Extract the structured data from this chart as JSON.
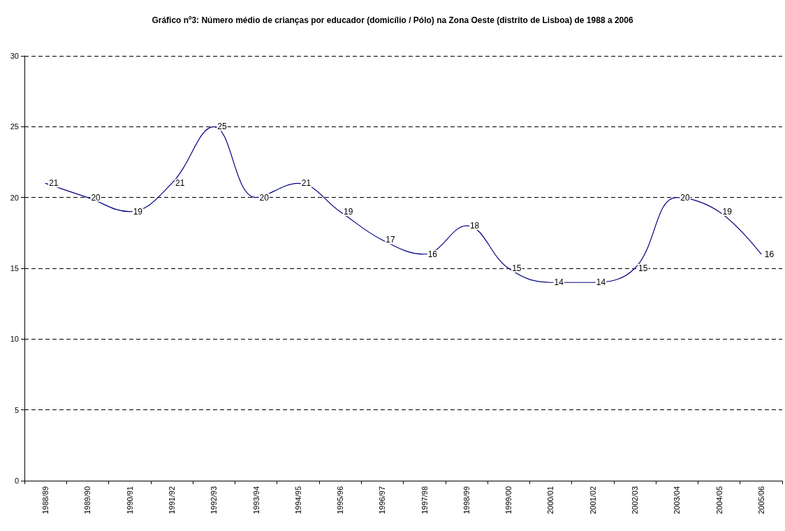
{
  "chart_data": {
    "type": "line",
    "title": "Gráfico nº3: Número médio de crianças por educador (domicílio / Pólo) na Zona Oeste (distrito de Lisboa) de 1988 a 2006",
    "categories": [
      "1988/89",
      "1989/90",
      "1990/91",
      "1991/92",
      "1992/93",
      "1993/94",
      "1994/95",
      "1995/96",
      "1996/97",
      "1997/98",
      "1998/99",
      "1999/00",
      "2000/01",
      "2001/02",
      "2002/03",
      "2003/04",
      "2004/05",
      "2005/06"
    ],
    "values": [
      21,
      20,
      19,
      21,
      25,
      20,
      21,
      19,
      17,
      16,
      18,
      15,
      14,
      14,
      15,
      20,
      19,
      16
    ],
    "color": "#000080",
    "ylim": [
      0,
      30
    ],
    "yticks": [
      0,
      5,
      10,
      15,
      20,
      25,
      30
    ],
    "grid": "y",
    "data_labels": true,
    "marker": "none",
    "line_style": "solid"
  }
}
